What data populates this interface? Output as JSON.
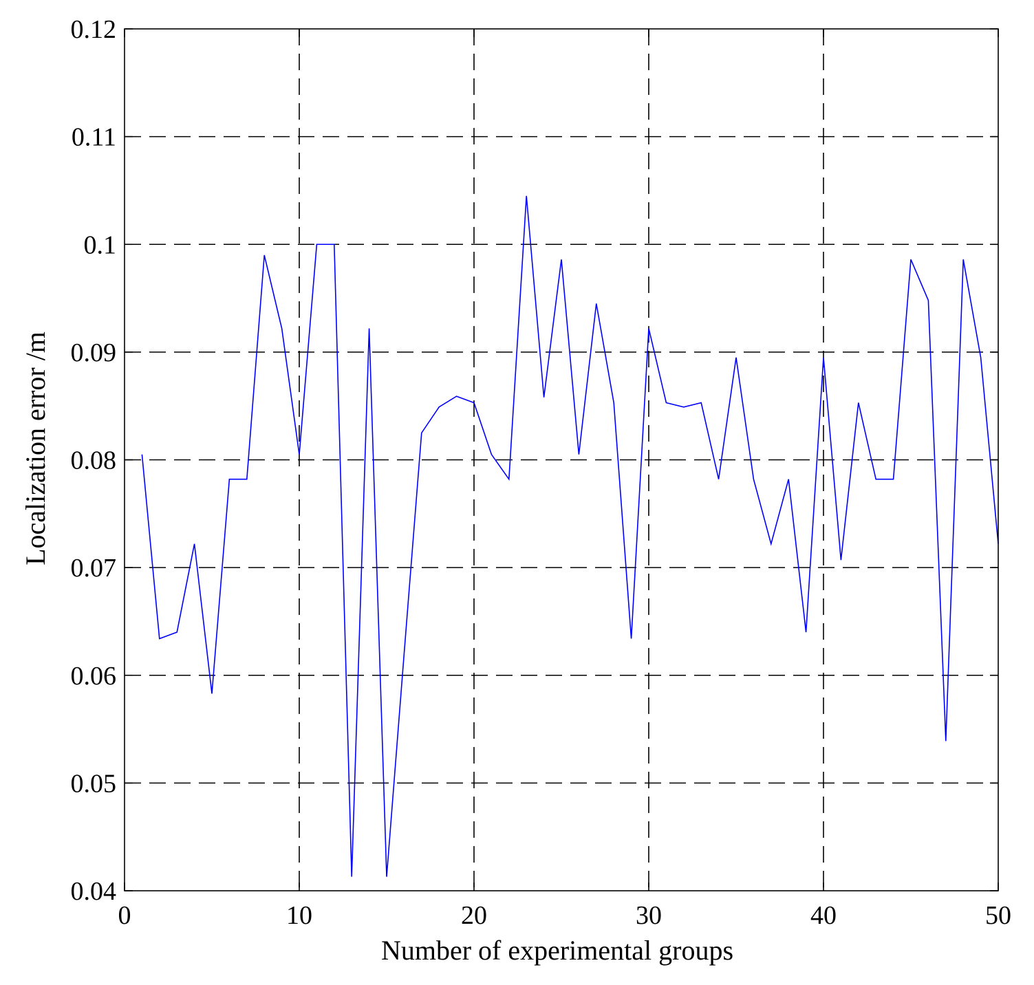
{
  "chart_data": {
    "type": "line",
    "title": "",
    "xlabel": "Number of experimental groups",
    "ylabel": "Localization error /m",
    "xlim": [
      0,
      50
    ],
    "ylim": [
      0.04,
      0.12
    ],
    "xticks": [
      0,
      10,
      20,
      30,
      40,
      50
    ],
    "xtick_labels": [
      "0",
      "10",
      "20",
      "30",
      "40",
      "50"
    ],
    "yticks": [
      0.04,
      0.05,
      0.06,
      0.07,
      0.08,
      0.09,
      0.1,
      0.11,
      0.12
    ],
    "ytick_labels": [
      "0.04",
      "0.05",
      "0.06",
      "0.07",
      "0.08",
      "0.09",
      "0.1",
      "0.11",
      "0.12"
    ],
    "grid": true,
    "grid_style": "dashed",
    "legend": "none",
    "series": [
      {
        "color": "#0000ff",
        "x": [
          1,
          2,
          3,
          4,
          5,
          6,
          7,
          8,
          9,
          10,
          11,
          12,
          13,
          14,
          15,
          16,
          17,
          18,
          19,
          20,
          21,
          22,
          23,
          24,
          25,
          26,
          27,
          28,
          29,
          30,
          31,
          32,
          33,
          34,
          35,
          36,
          37,
          38,
          39,
          40,
          41,
          42,
          43,
          44,
          45,
          46,
          47,
          48,
          49,
          50
        ],
        "y": [
          0.0805,
          0.0634,
          0.064,
          0.0722,
          0.0583,
          0.0782,
          0.0782,
          0.099,
          0.0922,
          0.0805,
          0.1,
          0.1,
          0.0413,
          0.0922,
          0.0413,
          0.062,
          0.0825,
          0.0849,
          0.0859,
          0.0853,
          0.0805,
          0.0782,
          0.1045,
          0.0858,
          0.0986,
          0.0805,
          0.0945,
          0.0853,
          0.0634,
          0.0922,
          0.0853,
          0.0849,
          0.0853,
          0.0782,
          0.0895,
          0.0782,
          0.0722,
          0.0782,
          0.064,
          0.0895,
          0.0707,
          0.0853,
          0.0782,
          0.0782,
          0.0986,
          0.0948,
          0.0539,
          0.0986,
          0.0895,
          0.0722
        ]
      }
    ]
  }
}
